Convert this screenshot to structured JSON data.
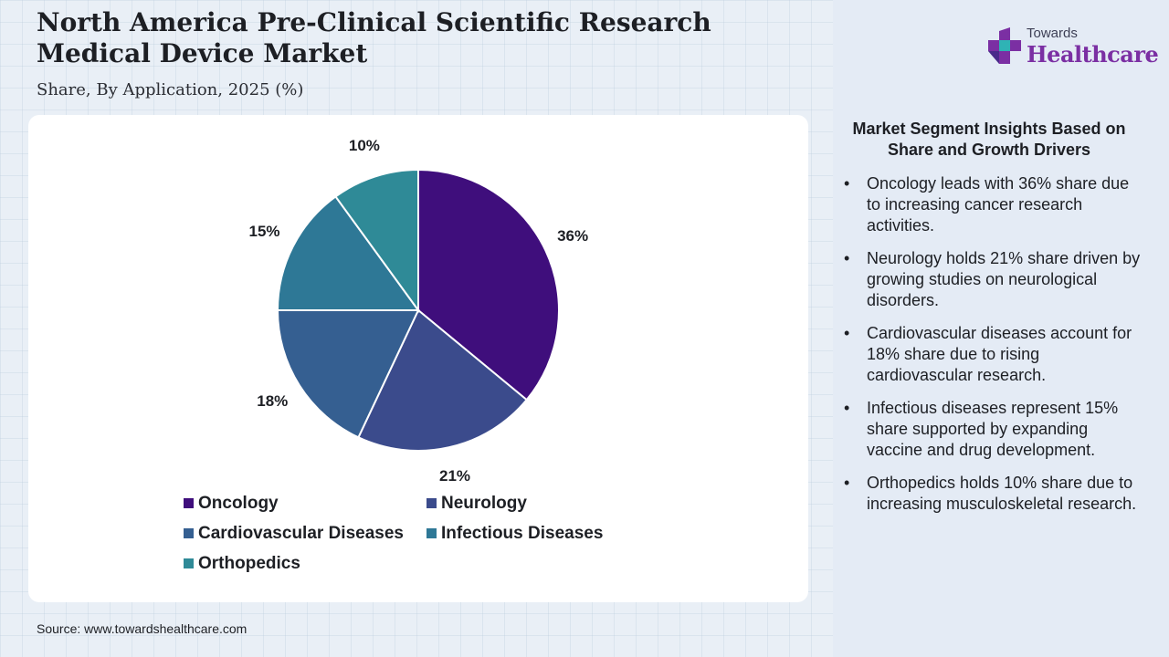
{
  "header": {
    "title": "North America Pre-Clinical Scientific Research Medical Device Market",
    "subtitle": "Share, By Application, 2025 (%)"
  },
  "logo": {
    "small_text": "Towards",
    "big_text": "Healthcare",
    "colors": {
      "plus_purple": "#6b2fa0",
      "plus_teal": "#2fb3b5"
    }
  },
  "chart_data": {
    "type": "pie",
    "title": "North America Pre-Clinical Scientific Research Medical Device Market",
    "subtitle": "Share, By Application, 2025 (%)",
    "slices": [
      {
        "label": "Oncology",
        "value": 36,
        "value_label": "36%",
        "color": "#3f0e7c"
      },
      {
        "label": "Neurology",
        "value": 21,
        "value_label": "21%",
        "color": "#3b4b8c"
      },
      {
        "label": "Cardiovascular Diseases",
        "value": 18,
        "value_label": "18%",
        "color": "#355f91"
      },
      {
        "label": "Infectious Diseases",
        "value": 15,
        "value_label": "15%",
        "color": "#2e7896"
      },
      {
        "label": "Orthopedics",
        "value": 10,
        "value_label": "10%",
        "color": "#2f8a97"
      }
    ],
    "legend_placement": "bottom"
  },
  "insights": {
    "title": "Market Segment Insights Based on Share and Growth Drivers",
    "bullet": "•",
    "items": [
      "Oncology leads with 36% share due to increasing cancer research activities.",
      "Neurology holds 21% share driven by growing studies on neurological disorders.",
      "Cardiovascular diseases account for 18% share due to rising cardiovascular research.",
      "Infectious diseases represent 15% share supported by expanding vaccine and drug development.",
      "Orthopedics holds 10% share due to increasing musculoskeletal research."
    ]
  },
  "footer": {
    "source": "Source: www.towardshealthcare.com"
  }
}
